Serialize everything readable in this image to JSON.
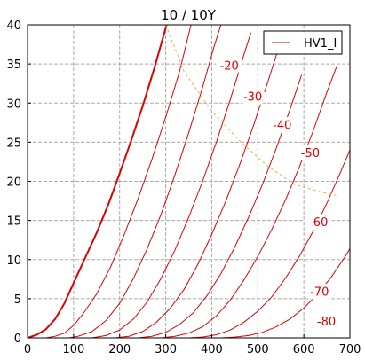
{
  "chart_data": {
    "type": "line",
    "title": "10 / 10Y",
    "xlabel": "",
    "ylabel": "",
    "xlim": [
      0,
      700
    ],
    "ylim": [
      0,
      40
    ],
    "xticks": [
      0,
      100,
      200,
      300,
      400,
      500,
      600,
      700
    ],
    "yticks": [
      0,
      5,
      10,
      15,
      20,
      25,
      30,
      35,
      40
    ],
    "grid": true,
    "legend": {
      "position": "top-right",
      "entries": [
        "HV1_I"
      ]
    },
    "colors": {
      "curves": "#dd0000",
      "power_limit": "#e8b04a",
      "axes": "#000000",
      "grid": "#aaaaaa"
    },
    "series": [
      {
        "name": "HV1_I",
        "grid_voltage_label": "",
        "points": [
          [
            0,
            0
          ],
          [
            20,
            0.4
          ],
          [
            40,
            1.1
          ],
          [
            60,
            2.4
          ],
          [
            80,
            4.4
          ],
          [
            100,
            7.0
          ],
          [
            125,
            10.2
          ],
          [
            150,
            13.4
          ],
          [
            175,
            17.0
          ],
          [
            200,
            21.0
          ],
          [
            225,
            25.2
          ],
          [
            250,
            29.6
          ],
          [
            275,
            34.4
          ],
          [
            300,
            39.6
          ],
          [
            302,
            40
          ]
        ]
      },
      {
        "grid_voltage_label": "",
        "points": [
          [
            40,
            0
          ],
          [
            60,
            0.2
          ],
          [
            80,
            0.6
          ],
          [
            100,
            1.6
          ],
          [
            120,
            3.0
          ],
          [
            150,
            5.6
          ],
          [
            180,
            9.0
          ],
          [
            210,
            13.2
          ],
          [
            240,
            17.8
          ],
          [
            270,
            22.8
          ],
          [
            300,
            28.2
          ],
          [
            330,
            34.0
          ],
          [
            355,
            40
          ]
        ]
      },
      {
        "grid_voltage_label": "-20",
        "points": [
          [
            90,
            0
          ],
          [
            110,
            0.2
          ],
          [
            140,
            0.8
          ],
          [
            170,
            2.2
          ],
          [
            200,
            4.4
          ],
          [
            230,
            7.6
          ],
          [
            260,
            11.4
          ],
          [
            290,
            15.8
          ],
          [
            320,
            20.8
          ],
          [
            350,
            26.2
          ],
          [
            380,
            32.0
          ],
          [
            405,
            37.2
          ],
          [
            420,
            40
          ]
        ]
      },
      {
        "grid_voltage_label": "-30",
        "points": [
          [
            140,
            0
          ],
          [
            170,
            0.3
          ],
          [
            200,
            1.0
          ],
          [
            230,
            2.4
          ],
          [
            260,
            4.6
          ],
          [
            290,
            7.6
          ],
          [
            320,
            11.2
          ],
          [
            350,
            15.4
          ],
          [
            380,
            20.0
          ],
          [
            410,
            25.0
          ],
          [
            440,
            30.4
          ],
          [
            470,
            36.2
          ],
          [
            485,
            39.0
          ]
        ]
      },
      {
        "grid_voltage_label": "-40",
        "points": [
          [
            190,
            0
          ],
          [
            220,
            0.2
          ],
          [
            250,
            0.8
          ],
          [
            280,
            2.0
          ],
          [
            310,
            3.8
          ],
          [
            340,
            6.2
          ],
          [
            370,
            9.4
          ],
          [
            400,
            13.2
          ],
          [
            430,
            17.4
          ],
          [
            460,
            22.0
          ],
          [
            490,
            27.0
          ],
          [
            520,
            32.4
          ],
          [
            545,
            37.0
          ]
        ]
      },
      {
        "grid_voltage_label": "-50",
        "points": [
          [
            240,
            0
          ],
          [
            270,
            0.2
          ],
          [
            300,
            0.7
          ],
          [
            330,
            1.7
          ],
          [
            360,
            3.2
          ],
          [
            390,
            5.4
          ],
          [
            420,
            8.2
          ],
          [
            450,
            11.6
          ],
          [
            480,
            15.4
          ],
          [
            510,
            19.6
          ],
          [
            540,
            24.2
          ],
          [
            570,
            29.2
          ],
          [
            595,
            33.6
          ]
        ]
      },
      {
        "grid_voltage_label": "-60",
        "points": [
          [
            290,
            0
          ],
          [
            320,
            0.2
          ],
          [
            350,
            0.6
          ],
          [
            380,
            1.4
          ],
          [
            410,
            2.8
          ],
          [
            440,
            4.8
          ],
          [
            470,
            7.4
          ],
          [
            500,
            10.4
          ],
          [
            530,
            13.8
          ],
          [
            560,
            17.6
          ],
          [
            590,
            21.8
          ],
          [
            620,
            26.4
          ],
          [
            650,
            31.4
          ],
          [
            672,
            34.8
          ]
        ]
      },
      {
        "grid_voltage_label": "-70",
        "points": [
          [
            350,
            0
          ],
          [
            380,
            0.1
          ],
          [
            410,
            0.4
          ],
          [
            440,
            1.0
          ],
          [
            470,
            2.0
          ],
          [
            500,
            3.4
          ],
          [
            530,
            5.2
          ],
          [
            560,
            7.6
          ],
          [
            590,
            10.4
          ],
          [
            620,
            13.6
          ],
          [
            650,
            17.2
          ],
          [
            680,
            21.2
          ],
          [
            700,
            24.0
          ]
        ]
      },
      {
        "grid_voltage_label": "-80",
        "points": [
          [
            420,
            0
          ],
          [
            450,
            0.1
          ],
          [
            480,
            0.3
          ],
          [
            510,
            0.7
          ],
          [
            540,
            1.4
          ],
          [
            570,
            2.4
          ],
          [
            600,
            3.8
          ],
          [
            630,
            5.6
          ],
          [
            660,
            7.8
          ],
          [
            690,
            10.4
          ],
          [
            700,
            11.4
          ]
        ]
      }
    ],
    "curve_labels": [
      {
        "text": "-20",
        "x": 438,
        "y": 34.8
      },
      {
        "text": "-30",
        "x": 489,
        "y": 30.8
      },
      {
        "text": "-40",
        "x": 553,
        "y": 27.2
      },
      {
        "text": "-50",
        "x": 614,
        "y": 23.6
      },
      {
        "text": "-60",
        "x": 632,
        "y": 14.8
      },
      {
        "text": "-70",
        "x": 634,
        "y": 5.9
      },
      {
        "text": "-80",
        "x": 649,
        "y": 2.1
      }
    ],
    "power_limit": {
      "style": "dashed",
      "points": [
        [
          300,
          40
        ],
        [
          340,
          34.0
        ],
        [
          400,
          29.0
        ],
        [
          460,
          25.2
        ],
        [
          520,
          22.0
        ],
        [
          580,
          19.6
        ],
        [
          640,
          18.6
        ],
        [
          670,
          18.2
        ]
      ]
    }
  }
}
